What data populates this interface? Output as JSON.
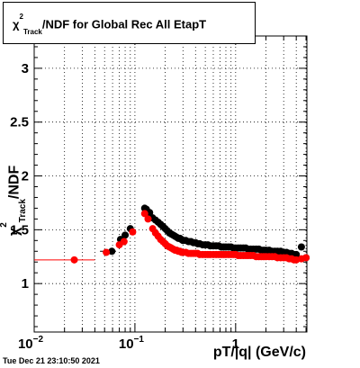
{
  "chart_data": {
    "type": "scatter",
    "title_parts": {
      "chi": "χ",
      "sup": "2",
      "sub": "Track",
      "rest": "/NDF for Global Rec All EtapT"
    },
    "ylabel_parts": {
      "chi": "χ",
      "sup": "2",
      "sub": "Track",
      "rest": "/NDF"
    },
    "xlabel": "pT/|q| (GeV/c)",
    "x_scale": "log",
    "xlim": [
      0.01,
      5.1
    ],
    "ylim": [
      0.55,
      3.3
    ],
    "grid": true,
    "y_ticks": [
      1,
      1.5,
      2,
      2.5,
      3
    ],
    "y_tick_labels": [
      "1",
      "1.5",
      "2",
      "2.5",
      "3"
    ],
    "x_major_ticks": [
      0.01,
      0.1,
      1
    ],
    "x_tick_labels": [
      {
        "base": "10",
        "exp": "−2"
      },
      {
        "base": "10",
        "exp": "−1"
      },
      {
        "base": "1",
        "exp": ""
      }
    ],
    "series": [
      {
        "color": "#000000",
        "x": [
          0.059,
          0.072,
          0.08,
          0.09,
          0.125,
          0.13,
          0.14,
          0.15,
          0.16,
          0.17,
          0.18,
          0.19,
          0.2,
          0.21,
          0.22,
          0.23,
          0.24,
          0.25,
          0.26,
          0.27,
          0.28,
          0.29,
          0.3,
          0.32,
          0.34,
          0.36,
          0.38,
          0.4,
          0.42,
          0.44,
          0.47,
          0.5,
          0.53,
          0.56,
          0.6,
          0.64,
          0.68,
          0.72,
          0.76,
          0.8,
          0.85,
          0.9,
          0.95,
          1.0,
          1.06,
          1.12,
          1.19,
          1.26,
          1.33,
          1.41,
          1.5,
          1.6,
          1.7,
          1.8,
          1.9,
          2.0,
          2.15,
          2.3,
          2.45,
          2.6,
          2.8,
          3.0,
          3.2,
          3.4,
          3.6,
          3.8,
          4.0,
          4.5,
          5.0
        ],
        "y": [
          1.3,
          1.41,
          1.45,
          1.51,
          1.7,
          1.69,
          1.66,
          1.61,
          1.59,
          1.57,
          1.55,
          1.53,
          1.51,
          1.49,
          1.47,
          1.46,
          1.45,
          1.44,
          1.43,
          1.42,
          1.42,
          1.41,
          1.4,
          1.4,
          1.39,
          1.39,
          1.38,
          1.38,
          1.37,
          1.37,
          1.36,
          1.36,
          1.36,
          1.35,
          1.35,
          1.35,
          1.35,
          1.34,
          1.34,
          1.34,
          1.34,
          1.34,
          1.33,
          1.33,
          1.33,
          1.33,
          1.33,
          1.33,
          1.32,
          1.32,
          1.32,
          1.32,
          1.32,
          1.31,
          1.31,
          1.31,
          1.31,
          1.3,
          1.3,
          1.3,
          1.3,
          1.29,
          1.29,
          1.28,
          1.28,
          1.27,
          1.27,
          1.34,
          1.24
        ]
      },
      {
        "color": "#ff0000",
        "x": [
          0.025,
          0.052,
          0.07,
          0.078,
          0.095,
          0.125,
          0.135,
          0.15,
          0.16,
          0.17,
          0.18,
          0.19,
          0.2,
          0.21,
          0.22,
          0.23,
          0.24,
          0.25,
          0.26,
          0.27,
          0.28,
          0.29,
          0.3,
          0.32,
          0.34,
          0.36,
          0.38,
          0.4,
          0.42,
          0.44,
          0.47,
          0.5,
          0.53,
          0.56,
          0.6,
          0.64,
          0.68,
          0.72,
          0.76,
          0.8,
          0.85,
          0.9,
          0.95,
          1.0,
          1.06,
          1.12,
          1.19,
          1.26,
          1.33,
          1.41,
          1.5,
          1.6,
          1.7,
          1.8,
          1.9,
          2.0,
          2.15,
          2.3,
          2.45,
          2.6,
          2.8,
          3.0,
          3.2,
          3.4,
          3.6,
          3.8,
          4.0,
          4.5,
          5.0
        ],
        "y": [
          1.22,
          1.29,
          1.36,
          1.39,
          1.48,
          1.65,
          1.6,
          1.51,
          1.47,
          1.44,
          1.41,
          1.39,
          1.37,
          1.35,
          1.34,
          1.33,
          1.32,
          1.31,
          1.31,
          1.3,
          1.3,
          1.29,
          1.29,
          1.29,
          1.28,
          1.28,
          1.28,
          1.28,
          1.28,
          1.27,
          1.27,
          1.27,
          1.27,
          1.27,
          1.27,
          1.27,
          1.27,
          1.27,
          1.27,
          1.27,
          1.27,
          1.27,
          1.27,
          1.27,
          1.26,
          1.26,
          1.26,
          1.26,
          1.26,
          1.26,
          1.26,
          1.25,
          1.25,
          1.25,
          1.25,
          1.25,
          1.25,
          1.25,
          1.25,
          1.24,
          1.24,
          1.24,
          1.24,
          1.23,
          1.23,
          1.22,
          1.22,
          1.23,
          1.24
        ]
      }
    ],
    "red_segment": {
      "x": [
        0.01,
        0.04
      ],
      "y": 1.22
    }
  },
  "timestamp": "Tue Dec 21 23:10:50 2021"
}
